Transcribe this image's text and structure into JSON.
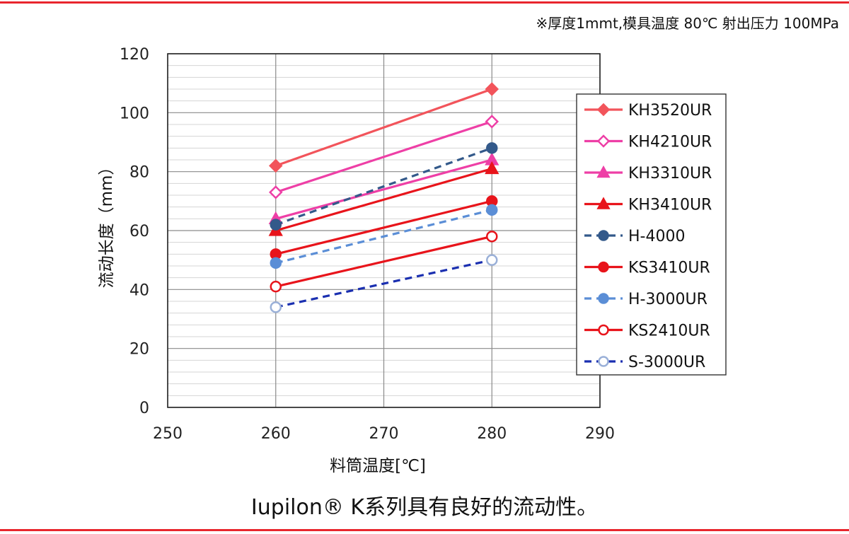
{
  "note": "※厚度1mmt,模具温度 80℃ 射出压力 100MPa",
  "caption": "Iupilon® K系列具有良好的流动性。",
  "chart_data": {
    "type": "line",
    "xlabel": "料筒温度[℃]",
    "ylabel": "流动长度（mm）",
    "xlim": [
      250,
      290
    ],
    "ylim": [
      0,
      120
    ],
    "x_ticks": [
      250,
      260,
      270,
      280,
      290
    ],
    "y_ticks": [
      0,
      20,
      40,
      60,
      80,
      100,
      120
    ],
    "grid": true,
    "legend_position": "right",
    "x": [
      260,
      280
    ],
    "series": [
      {
        "name": "KH3520UR",
        "values": [
          82,
          108
        ],
        "color": "#f2545b",
        "dash": false,
        "marker": "diamond",
        "fill": true
      },
      {
        "name": "KH4210UR",
        "values": [
          73,
          97
        ],
        "color": "#ee3fa6",
        "dash": false,
        "marker": "diamond",
        "fill": false
      },
      {
        "name": "KH3310UR",
        "values": [
          64,
          84
        ],
        "color": "#ee3fa6",
        "dash": false,
        "marker": "triangle",
        "fill": true
      },
      {
        "name": "KH3410UR",
        "values": [
          60,
          81
        ],
        "color": "#e8141b",
        "dash": false,
        "marker": "triangle",
        "fill": true
      },
      {
        "name": "H-4000",
        "values": [
          62,
          88
        ],
        "color": "#33598a",
        "dash": true,
        "marker": "circle",
        "fill": true
      },
      {
        "name": "KS3410UR",
        "values": [
          52,
          70
        ],
        "color": "#e8141b",
        "dash": false,
        "marker": "circle",
        "fill": true
      },
      {
        "name": "H-3000UR",
        "values": [
          49,
          67
        ],
        "color": "#5b8ed6",
        "dash": true,
        "marker": "circle",
        "fill": true
      },
      {
        "name": "KS2410UR",
        "values": [
          41,
          58
        ],
        "color": "#e8141b",
        "dash": false,
        "marker": "circle",
        "fill": false
      },
      {
        "name": "S-3000UR",
        "values": [
          34,
          50
        ],
        "color": "#1a2fb0",
        "dash": true,
        "marker": "circle",
        "fill": false
      }
    ]
  }
}
